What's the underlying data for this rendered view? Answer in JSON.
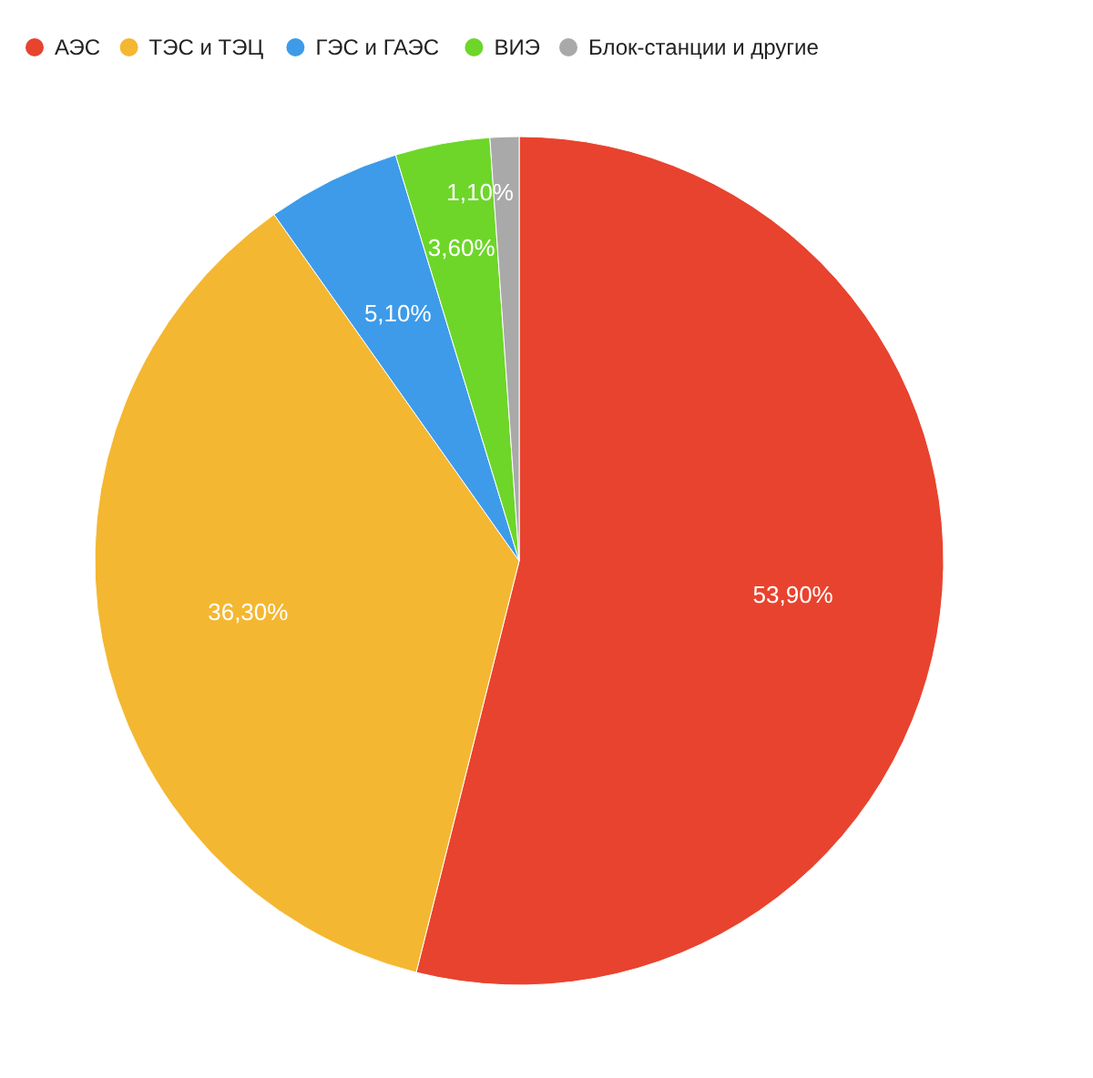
{
  "chart_data": {
    "type": "pie",
    "categories": [
      "АЭС",
      "ТЭС и ТЭЦ",
      "ГЭС и ГАЭС",
      "ВИЭ",
      "Блок-станции и другие"
    ],
    "values": [
      53.9,
      36.3,
      5.1,
      3.6,
      1.1
    ],
    "colors": [
      "#e8432e",
      "#f4b731",
      "#3d9be9",
      "#6dd629",
      "#a9a9a9"
    ],
    "value_labels": [
      "53,90%",
      "36,30%",
      "5,10%",
      "3,60%",
      "1,10%"
    ],
    "legend": "top left"
  }
}
